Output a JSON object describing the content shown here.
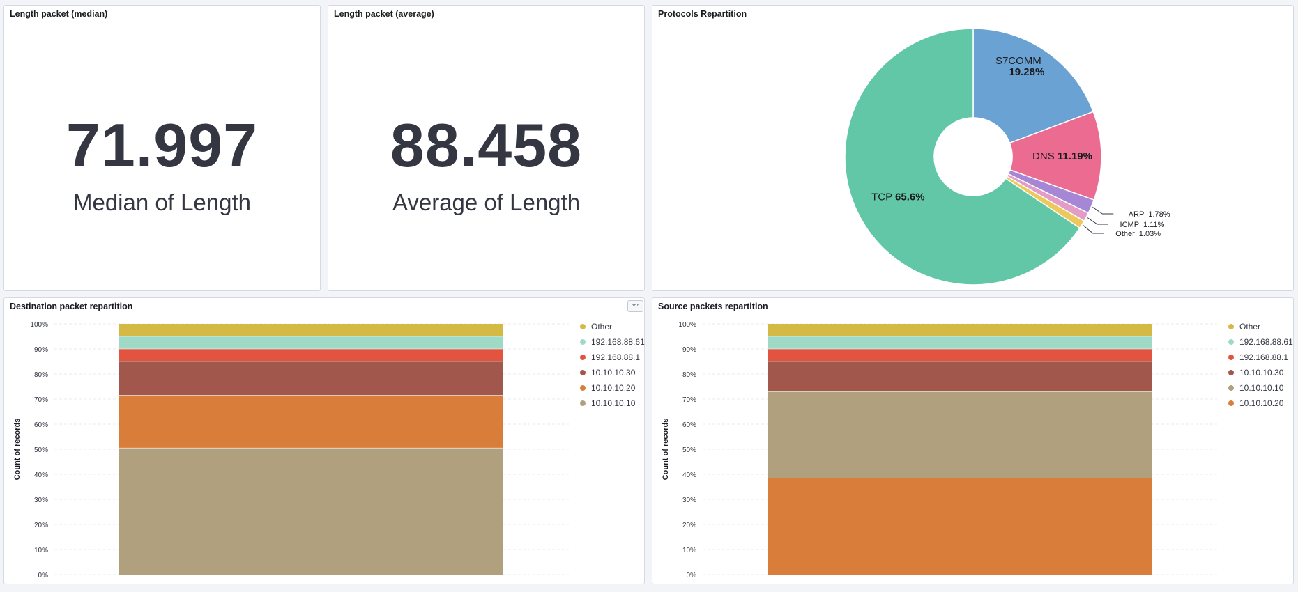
{
  "colors": {
    "other": "#d4b944",
    "192.168.88.61": "#9fdac6",
    "192.168.88.1": "#e2543f",
    "10.10.10.30": "#a2574c",
    "10.10.10.20": "#d97d3a",
    "10.10.10.10": "#b0a07e"
  },
  "median_panel": {
    "title": "Length packet (median)",
    "value": "71.997",
    "label": "Median of Length"
  },
  "average_panel": {
    "title": "Length packet (average)",
    "value": "88.458",
    "label": "Average of Length"
  },
  "protocols_panel": {
    "title": "Protocols Repartition"
  },
  "destination_panel": {
    "title": "Destination packet repartition",
    "options_icon": "ellipsis-icon"
  },
  "source_panel": {
    "title": "Source packets repartition"
  },
  "chart_data": [
    {
      "id": "protocols",
      "type": "pie",
      "donut": true,
      "slices": [
        {
          "name": "S7COMM",
          "value": 19.28,
          "label": "19.28%",
          "color": "#6aa2d4"
        },
        {
          "name": "DNS",
          "value": 11.19,
          "label": "11.19%",
          "color": "#ec6c91"
        },
        {
          "name": "ARP",
          "value": 1.78,
          "label": "1.78%",
          "color": "#a687d6"
        },
        {
          "name": "ICMP",
          "value": 1.11,
          "label": "1.11%",
          "color": "#e39cc6"
        },
        {
          "name": "Other",
          "value": 1.03,
          "label": "1.03%",
          "color": "#edc95c"
        },
        {
          "name": "TCP",
          "value": 65.6,
          "label": "65.6%",
          "color": "#61c7a7"
        }
      ]
    },
    {
      "id": "destination",
      "type": "bar",
      "stacked": "percent",
      "ylabel": "Count of records",
      "yticks": [
        "0%",
        "10%",
        "20%",
        "30%",
        "40%",
        "50%",
        "60%",
        "70%",
        "80%",
        "90%",
        "100%"
      ],
      "ylim": [
        0,
        100
      ],
      "grid": true,
      "legend_position": "right",
      "series": [
        {
          "name": "10.10.10.10",
          "value": 50.5,
          "color": "#b0a07e"
        },
        {
          "name": "10.10.10.20",
          "value": 21,
          "color": "#d97d3a"
        },
        {
          "name": "10.10.10.30",
          "value": 13.5,
          "color": "#a2574c"
        },
        {
          "name": "192.168.88.1",
          "value": 5,
          "color": "#e2543f"
        },
        {
          "name": "192.168.88.61",
          "value": 5,
          "color": "#9fdac6"
        },
        {
          "name": "Other",
          "value": 5,
          "color": "#d4b944"
        }
      ],
      "legend": [
        "Other",
        "192.168.88.61",
        "192.168.88.1",
        "10.10.10.30",
        "10.10.10.20",
        "10.10.10.10"
      ]
    },
    {
      "id": "source",
      "type": "bar",
      "stacked": "percent",
      "ylabel": "Count of records",
      "yticks": [
        "0%",
        "10%",
        "20%",
        "30%",
        "40%",
        "50%",
        "60%",
        "70%",
        "80%",
        "90%",
        "100%"
      ],
      "ylim": [
        0,
        100
      ],
      "grid": true,
      "legend_position": "right",
      "series": [
        {
          "name": "10.10.10.20",
          "value": 38.5,
          "color": "#d97d3a"
        },
        {
          "name": "10.10.10.10",
          "value": 34.5,
          "color": "#b0a07e"
        },
        {
          "name": "10.10.10.30",
          "value": 12,
          "color": "#a2574c"
        },
        {
          "name": "192.168.88.1",
          "value": 5,
          "color": "#e2543f"
        },
        {
          "name": "192.168.88.61",
          "value": 5,
          "color": "#9fdac6"
        },
        {
          "name": "Other",
          "value": 5,
          "color": "#d4b944"
        }
      ],
      "legend": [
        "Other",
        "192.168.88.61",
        "192.168.88.1",
        "10.10.10.30",
        "10.10.10.10",
        "10.10.10.20"
      ]
    }
  ]
}
